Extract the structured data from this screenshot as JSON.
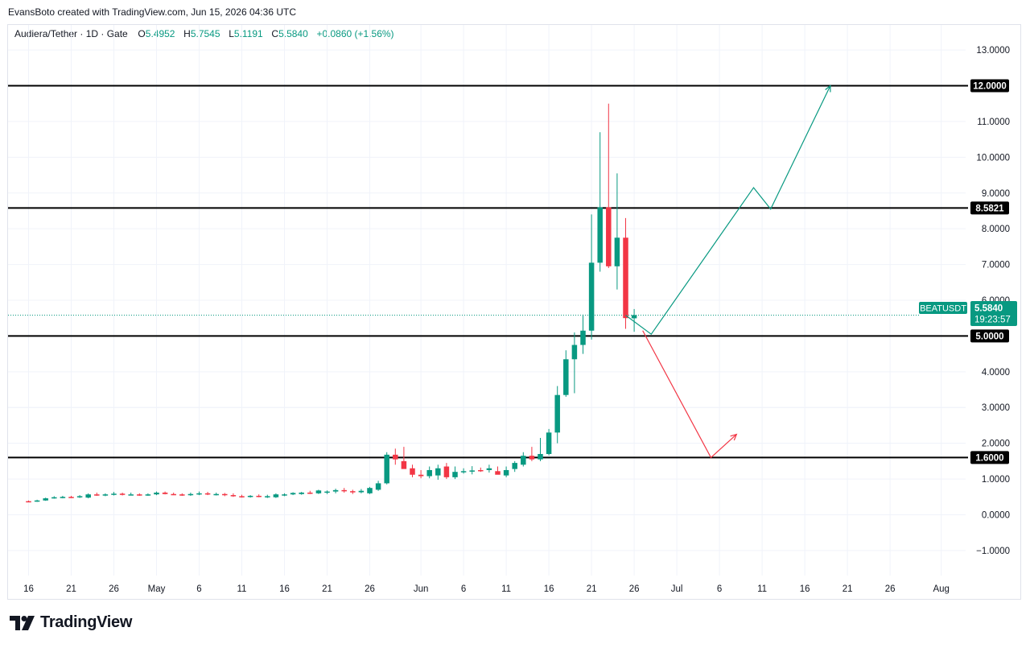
{
  "header": {
    "credit": "EvansBoto created with TradingView.com, Jun 15, 2026 04:36 UTC"
  },
  "legend": {
    "symbol": "Audiera/Tether · 1D · Gate",
    "o_label": "O",
    "o_value": "5.4952",
    "h_label": "H",
    "h_value": "5.7545",
    "l_label": "L",
    "l_value": "5.1191",
    "c_label": "C",
    "c_value": "5.5840",
    "change": "+0.0860 (+1.56%)"
  },
  "price_tag": {
    "ticker": "BEATUSDT",
    "price": "5.5840",
    "countdown": "19:23:57"
  },
  "branding": {
    "logo_text": "TradingView"
  },
  "colors": {
    "up": "#089981",
    "down": "#f23645",
    "level_line": "#000000",
    "projection_up": "#089981",
    "projection_down": "#f23645",
    "grid": "#f0f3fa"
  },
  "chart_data": {
    "type": "candlestick",
    "title": "Audiera/Tether · 1D · Gate",
    "ylim": [
      -1.7,
      13.7
    ],
    "y_ticks": [
      "13.0000",
      "11.0000",
      "10.0000",
      "9.0000",
      "8.0000",
      "7.0000",
      "6.0000",
      "4.0000",
      "3.0000",
      "2.0000",
      "1.0000",
      "0.0000",
      "−1.0000"
    ],
    "y_tick_values": [
      13,
      11,
      10,
      9,
      8,
      7,
      6,
      4,
      3,
      2,
      1,
      0,
      -1
    ],
    "x_ticks": [
      {
        "label": "16",
        "day": 0
      },
      {
        "label": "21",
        "day": 5
      },
      {
        "label": "26",
        "day": 10
      },
      {
        "label": "May",
        "day": 15
      },
      {
        "label": "6",
        "day": 20
      },
      {
        "label": "11",
        "day": 25
      },
      {
        "label": "16",
        "day": 30
      },
      {
        "label": "21",
        "day": 35
      },
      {
        "label": "26",
        "day": 40
      },
      {
        "label": "Jun",
        "day": 46
      },
      {
        "label": "6",
        "day": 51
      },
      {
        "label": "11",
        "day": 56
      },
      {
        "label": "16",
        "day": 61
      },
      {
        "label": "21",
        "day": 66
      },
      {
        "label": "26",
        "day": 71
      },
      {
        "label": "Jul",
        "day": 76
      },
      {
        "label": "6",
        "day": 81
      },
      {
        "label": "11",
        "day": 86
      },
      {
        "label": "16",
        "day": 91
      },
      {
        "label": "21",
        "day": 96
      },
      {
        "label": "26",
        "day": 101
      },
      {
        "label": "Aug",
        "day": 107
      }
    ],
    "candles": [
      [
        0.38,
        0.4,
        0.36,
        0.37
      ],
      [
        0.37,
        0.42,
        0.36,
        0.4
      ],
      [
        0.4,
        0.48,
        0.39,
        0.46
      ],
      [
        0.46,
        0.52,
        0.45,
        0.49
      ],
      [
        0.49,
        0.53,
        0.46,
        0.5
      ],
      [
        0.5,
        0.53,
        0.47,
        0.49
      ],
      [
        0.49,
        0.55,
        0.47,
        0.52
      ],
      [
        0.48,
        0.6,
        0.46,
        0.57
      ],
      [
        0.57,
        0.62,
        0.53,
        0.55
      ],
      [
        0.55,
        0.6,
        0.52,
        0.57
      ],
      [
        0.57,
        0.64,
        0.54,
        0.59
      ],
      [
        0.59,
        0.62,
        0.54,
        0.56
      ],
      [
        0.56,
        0.62,
        0.54,
        0.57
      ],
      [
        0.57,
        0.6,
        0.53,
        0.55
      ],
      [
        0.55,
        0.6,
        0.53,
        0.57
      ],
      [
        0.57,
        0.65,
        0.55,
        0.62
      ],
      [
        0.62,
        0.65,
        0.57,
        0.58
      ],
      [
        0.58,
        0.62,
        0.55,
        0.57
      ],
      [
        0.57,
        0.6,
        0.53,
        0.55
      ],
      [
        0.55,
        0.62,
        0.53,
        0.58
      ],
      [
        0.58,
        0.65,
        0.55,
        0.6
      ],
      [
        0.6,
        0.64,
        0.55,
        0.57
      ],
      [
        0.57,
        0.62,
        0.54,
        0.58
      ],
      [
        0.58,
        0.61,
        0.52,
        0.55
      ],
      [
        0.55,
        0.6,
        0.5,
        0.52
      ],
      [
        0.52,
        0.56,
        0.48,
        0.5
      ],
      [
        0.5,
        0.55,
        0.48,
        0.53
      ],
      [
        0.53,
        0.57,
        0.49,
        0.51
      ],
      [
        0.51,
        0.56,
        0.47,
        0.52
      ],
      [
        0.49,
        0.6,
        0.47,
        0.57
      ],
      [
        0.54,
        0.6,
        0.52,
        0.57
      ],
      [
        0.57,
        0.63,
        0.55,
        0.61
      ],
      [
        0.58,
        0.64,
        0.56,
        0.62
      ],
      [
        0.62,
        0.67,
        0.58,
        0.6
      ],
      [
        0.6,
        0.7,
        0.58,
        0.68
      ],
      [
        0.62,
        0.68,
        0.58,
        0.65
      ],
      [
        0.65,
        0.73,
        0.6,
        0.69
      ],
      [
        0.69,
        0.75,
        0.62,
        0.66
      ],
      [
        0.66,
        0.7,
        0.58,
        0.63
      ],
      [
        0.63,
        0.72,
        0.6,
        0.67
      ],
      [
        0.6,
        0.78,
        0.58,
        0.75
      ],
      [
        0.7,
        0.95,
        0.67,
        0.88
      ],
      [
        0.88,
        1.75,
        0.85,
        1.68
      ],
      [
        1.68,
        1.85,
        1.4,
        1.55
      ],
      [
        1.5,
        1.9,
        1.38,
        1.28
      ],
      [
        1.3,
        1.4,
        1.05,
        1.12
      ],
      [
        1.12,
        1.25,
        1.02,
        1.08
      ],
      [
        1.08,
        1.35,
        1.02,
        1.25
      ],
      [
        1.1,
        1.4,
        0.98,
        1.3
      ],
      [
        1.35,
        1.45,
        1.0,
        1.05
      ],
      [
        1.05,
        1.35,
        1.0,
        1.2
      ],
      [
        1.2,
        1.3,
        1.15,
        1.22
      ],
      [
        1.24,
        1.36,
        1.13,
        1.24
      ],
      [
        1.25,
        1.32,
        1.2,
        1.22
      ],
      [
        1.25,
        1.4,
        1.18,
        1.3
      ],
      [
        1.22,
        1.35,
        1.15,
        1.12
      ],
      [
        1.1,
        1.35,
        1.05,
        1.25
      ],
      [
        1.28,
        1.5,
        1.2,
        1.45
      ],
      [
        1.4,
        1.75,
        1.35,
        1.65
      ],
      [
        1.65,
        1.9,
        1.5,
        1.55
      ],
      [
        1.55,
        2.15,
        1.5,
        1.7
      ],
      [
        1.7,
        2.4,
        1.66,
        2.3
      ],
      [
        2.3,
        3.6,
        2.0,
        3.35
      ],
      [
        3.35,
        4.6,
        3.3,
        4.35
      ],
      [
        4.35,
        5.1,
        3.4,
        4.75
      ],
      [
        4.75,
        5.6,
        4.5,
        5.15
      ],
      [
        5.15,
        8.4,
        4.9,
        7.05
      ],
      [
        7.05,
        10.7,
        6.8,
        8.6
      ],
      [
        8.6,
        11.5,
        6.9,
        6.95
      ],
      [
        6.95,
        9.55,
        6.3,
        7.75
      ],
      [
        7.75,
        8.3,
        5.2,
        5.5
      ],
      [
        5.4952,
        5.7545,
        5.1191,
        5.584
      ]
    ],
    "levels": [
      {
        "value": 12.0,
        "label": "12.0000"
      },
      {
        "value": 8.5821,
        "label": "8.5821"
      },
      {
        "value": 5.0,
        "label": "5.0000"
      },
      {
        "value": 1.6,
        "label": "1.6000"
      }
    ],
    "projection_up": [
      [
        70,
        5.58
      ],
      [
        73,
        5.05
      ],
      [
        85,
        9.15
      ],
      [
        87,
        8.55
      ],
      [
        94,
        12.0
      ]
    ],
    "projection_down": [
      [
        72,
        5.15
      ],
      [
        80,
        1.6
      ],
      [
        83,
        2.25
      ]
    ],
    "current_price": 5.584
  }
}
